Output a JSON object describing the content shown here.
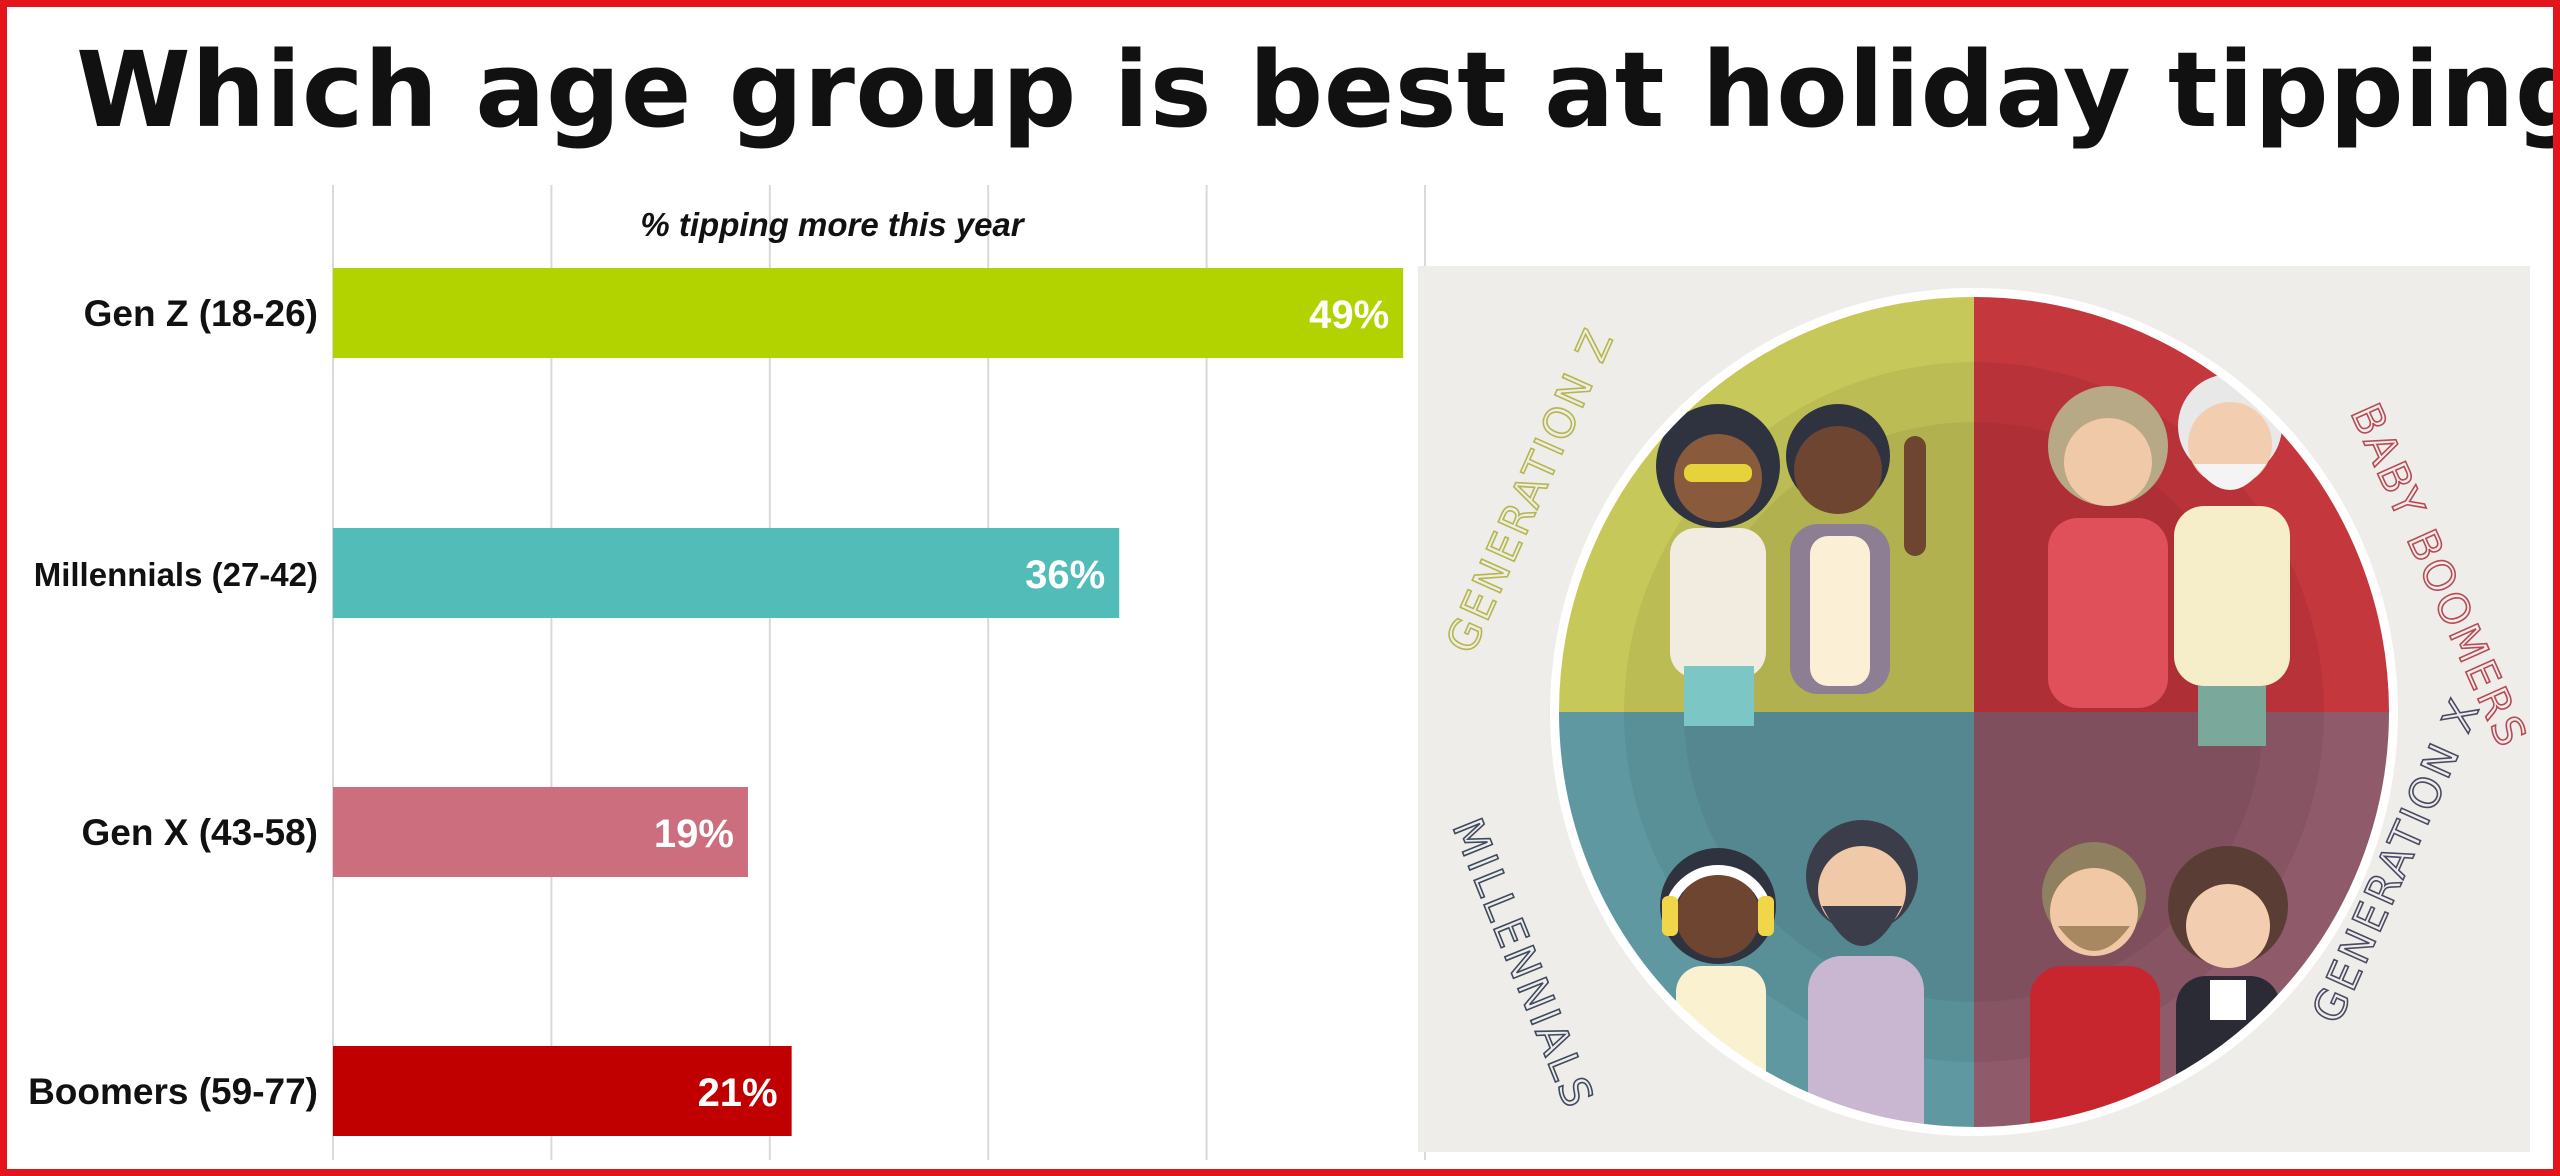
{
  "title": "Which age group is best at holiday tipping?",
  "chart_data": {
    "type": "bar",
    "orientation": "horizontal",
    "title": "Which age group is best at holiday tipping?",
    "subtitle": "% tipping more this year",
    "categories": [
      "Gen Z (18-26)",
      "Millennials (27-42)",
      "Gen X (43-58)",
      "Boomers (59-77)"
    ],
    "values": [
      49,
      36,
      19,
      21
    ],
    "value_labels": [
      "49%",
      "36%",
      "19%",
      "21%"
    ],
    "colors": [
      "#b3d300",
      "#52bdb8",
      "#cc6e7e",
      "#c00000"
    ],
    "xlim": [
      0,
      50
    ],
    "grid": true,
    "legend": "none"
  },
  "illustration": {
    "quadrant_labels": [
      "GENERATION Z",
      "BABY BOOMERS",
      "MILLENNIALS",
      "GENERATION X"
    ],
    "quadrant_colors": [
      "#c7c85a",
      "#c4373d",
      "#5f98a1",
      "#8f5a6a"
    ],
    "background": "#eeedea"
  },
  "colors": {
    "frame": "#e3141b",
    "title": "#111111"
  }
}
